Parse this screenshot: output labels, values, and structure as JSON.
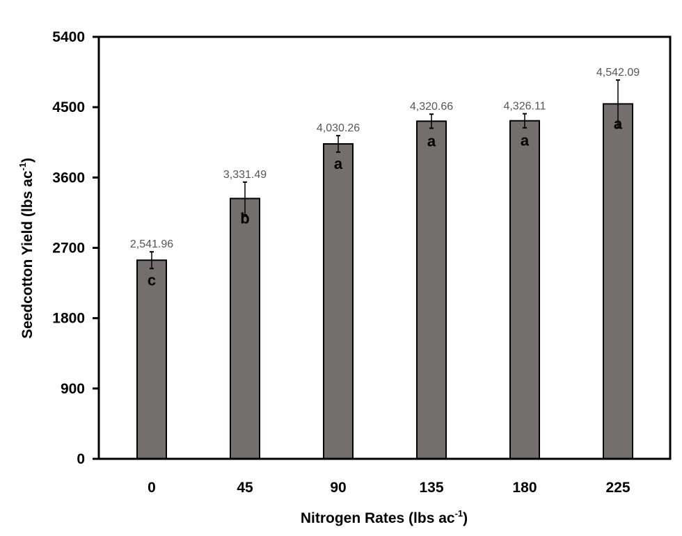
{
  "chart_data": {
    "type": "bar",
    "title": "",
    "xlabel": "Nitrogen Rates (lbs ac",
    "xlabel_sup": "-1",
    "xlabel_end": ")",
    "ylabel": "Seedcotton Yield (lbs ac",
    "ylabel_sup": "-1",
    "ylabel_end": ")",
    "categories": [
      "0",
      "45",
      "90",
      "135",
      "180",
      "225"
    ],
    "values": [
      2541.96,
      3331.49,
      4030.26,
      4320.66,
      4326.11,
      4542.09
    ],
    "data_labels": [
      "2,541.96",
      "3,331.49",
      "4,030.26",
      "4,320.66",
      "4,326.11",
      "4,542.09"
    ],
    "error": [
      107,
      210,
      105,
      90,
      90,
      305
    ],
    "letters": [
      "c",
      "b",
      "a",
      "a",
      "a",
      "a"
    ],
    "ylim": [
      0,
      5400
    ],
    "yticks": [
      0,
      900,
      1800,
      2700,
      3600,
      4500,
      5400
    ],
    "ytick_labels": [
      "0",
      "900",
      "1800",
      "2700",
      "3600",
      "4500",
      "5400"
    ],
    "grid": false,
    "bar_color": "#736f6e"
  }
}
